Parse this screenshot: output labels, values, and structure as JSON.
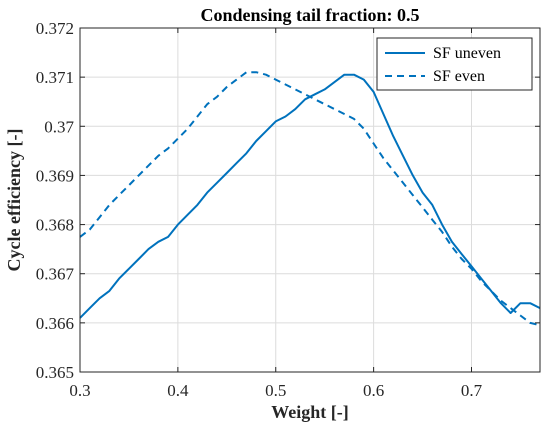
{
  "chart_data": {
    "type": "line",
    "title": "Condensing tail fraction: 0.5",
    "xlabel": "Weight [-]",
    "ylabel": "Cycle efficiency [-]",
    "xlim": [
      0.3,
      0.77
    ],
    "ylim": [
      0.365,
      0.372
    ],
    "x_ticks": [
      0.3,
      0.4,
      0.5,
      0.6,
      0.7
    ],
    "x_tick_labels": [
      "0.3",
      "0.4",
      "0.5",
      "0.6",
      "0.7"
    ],
    "y_ticks": [
      0.365,
      0.366,
      0.367,
      0.368,
      0.369,
      0.37,
      0.371,
      0.372
    ],
    "y_tick_labels": [
      "0.365",
      "0.366",
      "0.367",
      "0.368",
      "0.369",
      "0.37",
      "0.371",
      "0.372"
    ],
    "grid": true,
    "legend_position": "top-right",
    "series": [
      {
        "name": "SF uneven",
        "style": "solid",
        "color": "#0072BD",
        "x": [
          0.3,
          0.31,
          0.32,
          0.33,
          0.34,
          0.35,
          0.36,
          0.37,
          0.38,
          0.39,
          0.4,
          0.41,
          0.42,
          0.43,
          0.44,
          0.45,
          0.46,
          0.47,
          0.48,
          0.49,
          0.5,
          0.51,
          0.52,
          0.53,
          0.54,
          0.55,
          0.56,
          0.57,
          0.58,
          0.59,
          0.6,
          0.61,
          0.62,
          0.63,
          0.64,
          0.65,
          0.66,
          0.67,
          0.68,
          0.69,
          0.7,
          0.71,
          0.72,
          0.73,
          0.74,
          0.75,
          0.76,
          0.77
        ],
        "y": [
          0.3661,
          0.3663,
          0.3665,
          0.36665,
          0.3669,
          0.3671,
          0.3673,
          0.3675,
          0.36765,
          0.36775,
          0.368,
          0.3682,
          0.3684,
          0.36865,
          0.36885,
          0.36905,
          0.36925,
          0.36945,
          0.3697,
          0.3699,
          0.3701,
          0.3702,
          0.37035,
          0.37055,
          0.37065,
          0.37075,
          0.3709,
          0.37105,
          0.37105,
          0.37095,
          0.3707,
          0.37025,
          0.3698,
          0.3694,
          0.369,
          0.36865,
          0.3684,
          0.368,
          0.36765,
          0.3674,
          0.36715,
          0.3669,
          0.36665,
          0.3664,
          0.3662,
          0.3664,
          0.3664,
          0.3663
        ]
      },
      {
        "name": "SF even",
        "style": "dashed",
        "color": "#0072BD",
        "x": [
          0.3,
          0.31,
          0.32,
          0.33,
          0.34,
          0.35,
          0.36,
          0.37,
          0.38,
          0.39,
          0.4,
          0.41,
          0.42,
          0.43,
          0.44,
          0.45,
          0.46,
          0.47,
          0.48,
          0.49,
          0.5,
          0.51,
          0.52,
          0.53,
          0.54,
          0.55,
          0.56,
          0.57,
          0.58,
          0.59,
          0.6,
          0.61,
          0.62,
          0.63,
          0.64,
          0.65,
          0.66,
          0.67,
          0.68,
          0.69,
          0.7,
          0.71,
          0.72,
          0.73,
          0.74,
          0.75,
          0.76,
          0.77
        ],
        "y": [
          0.36775,
          0.3679,
          0.36815,
          0.3684,
          0.3686,
          0.3688,
          0.369,
          0.3692,
          0.3694,
          0.36955,
          0.36975,
          0.36995,
          0.3702,
          0.37045,
          0.3706,
          0.3708,
          0.37095,
          0.3711,
          0.3711,
          0.37105,
          0.37095,
          0.37085,
          0.37075,
          0.37065,
          0.37055,
          0.37045,
          0.37035,
          0.37025,
          0.37015,
          0.36995,
          0.36965,
          0.36935,
          0.3691,
          0.36885,
          0.3686,
          0.36835,
          0.3681,
          0.36785,
          0.36755,
          0.3673,
          0.3671,
          0.36685,
          0.36665,
          0.36645,
          0.3663,
          0.36615,
          0.366,
          0.36595
        ]
      }
    ]
  }
}
